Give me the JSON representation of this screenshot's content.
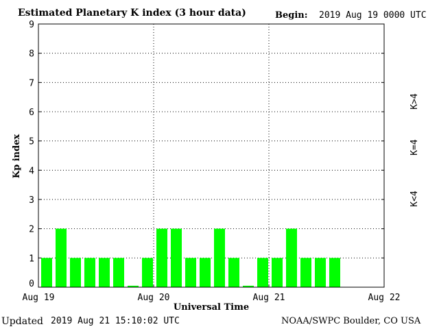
{
  "header": {
    "title": "Estimated Planetary K index (3 hour data)",
    "begin_label": "Begin:",
    "begin_value": "2019 Aug 19 0000 UTC"
  },
  "footer": {
    "updated_label": "Updated",
    "updated_value": "2019 Aug 21 15:10:02 UTC",
    "source": "NOAA/SWPC Boulder, CO USA"
  },
  "legend": [
    {
      "label": "K<4",
      "color": "#00ff00"
    },
    {
      "label": "K=4",
      "color": "#ffcc00"
    },
    {
      "label": "K>4",
      "color": "#ff2a00"
    }
  ],
  "chart_data": {
    "type": "bar",
    "title": "Estimated Planetary K index (3 hour data)",
    "xlabel": "Universal Time",
    "ylabel": "Kp index",
    "ylim": [
      0,
      9
    ],
    "yticks": [
      0,
      1,
      2,
      3,
      4,
      5,
      6,
      7,
      8,
      9
    ],
    "xtick_labels": [
      "Aug 19",
      "Aug 20",
      "Aug 21",
      "Aug 22"
    ],
    "slots_total": 24,
    "grid": true,
    "values": [
      1,
      2,
      1,
      1,
      1,
      1,
      0.05,
      1,
      2,
      2,
      1,
      1,
      2,
      1,
      0.05,
      1,
      1,
      2,
      1,
      1,
      1
    ]
  }
}
